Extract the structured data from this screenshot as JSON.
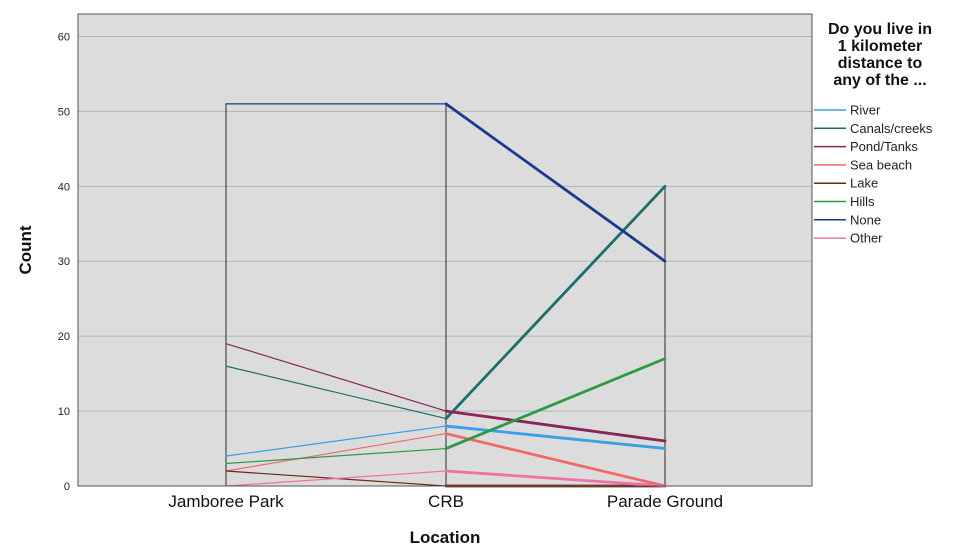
{
  "chart_data": {
    "type": "line",
    "xlabel": "Location",
    "ylabel": "Count",
    "categories": [
      "Jamboree Park",
      "CRB",
      "Parade Ground"
    ],
    "ylim": [
      0,
      63
    ],
    "yticks": [
      0,
      10,
      20,
      30,
      40,
      50,
      60
    ],
    "grid": true,
    "background": "#dcdcdc",
    "legend": {
      "placement": "right",
      "title_lines": [
        "Do you live in",
        "1 kilometer",
        "distance to",
        "any of the ..."
      ]
    },
    "series": [
      {
        "name": "River",
        "color": "#3c9ee6",
        "values": [
          4,
          8,
          5
        ]
      },
      {
        "name": "Canals/creeks",
        "color": "#1f6e6e",
        "values": [
          16,
          9,
          40
        ]
      },
      {
        "name": "Pond/Tanks",
        "color": "#8b2457",
        "values": [
          19,
          10,
          6
        ]
      },
      {
        "name": "Sea beach",
        "color": "#f06a6a",
        "values": [
          2,
          7,
          0
        ]
      },
      {
        "name": "Lake",
        "color": "#6b2a12",
        "values": [
          2,
          0,
          0
        ]
      },
      {
        "name": "Hills",
        "color": "#2f9a45",
        "values": [
          3,
          5,
          17
        ]
      },
      {
        "name": "None",
        "color": "#1b3a8f",
        "values": [
          51,
          51,
          30
        ]
      },
      {
        "name": "Other",
        "color": "#f070a8",
        "values": [
          0,
          2,
          0
        ]
      }
    ],
    "drop_lines": {
      "color": "#2a2a2a",
      "tops": [
        51,
        51,
        40
      ]
    }
  }
}
